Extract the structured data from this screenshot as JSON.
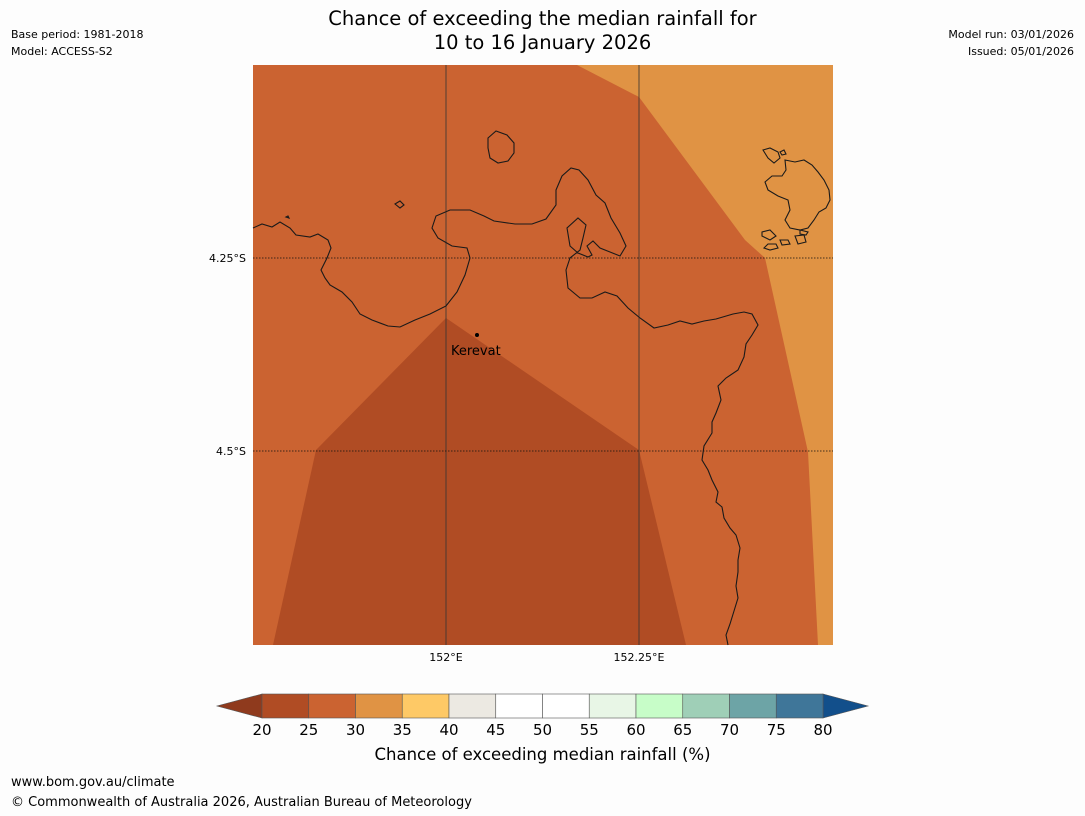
{
  "header": {
    "title_line1": "Chance of exceeding the median rainfall for",
    "title_line2": "10 to 16 January 2026",
    "base_period": "Base period: 1981-2018",
    "model": "Model: ACCESS-S2",
    "model_run": "Model run: 03/01/2026",
    "issued": "Issued: 05/01/2026"
  },
  "map": {
    "place_label": "Kerevat",
    "lat_labels": [
      "4.25°S",
      "4.5°S"
    ],
    "lon_labels": [
      "152°E",
      "152.25°E"
    ],
    "colors": {
      "p20_25": "#b04c24",
      "p25_30": "#cb6331",
      "p30_35": "#e09344",
      "coast": "#1a1a1a",
      "grid": "#333333"
    }
  },
  "colorbar": {
    "ticks": [
      "20",
      "25",
      "30",
      "35",
      "40",
      "45",
      "50",
      "55",
      "60",
      "65",
      "70",
      "75",
      "80"
    ],
    "colors": [
      "#b04c24",
      "#cb6331",
      "#e09344",
      "#fec966",
      "#ece9e2",
      "#ffffff",
      "#ffffff",
      "#e8f6e6",
      "#c7fdc8",
      "#9fcfb7",
      "#6da4a6",
      "#3f7699"
    ],
    "under_color": "#8f3a1d",
    "over_color": "#124f8b",
    "label": "Chance of exceeding median rainfall (%)"
  },
  "footer": {
    "url": "www.bom.gov.au/climate",
    "copyright": "© Commonwealth of Australia 2026, Australian Bureau of Meteorology"
  }
}
